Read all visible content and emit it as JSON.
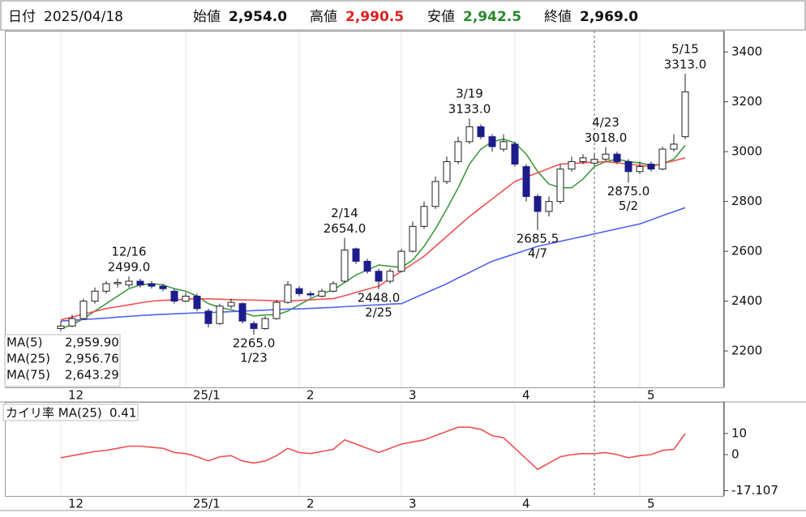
{
  "header": {
    "date_label": "日付",
    "date": "2025/04/18",
    "open_label": "始値",
    "open": "2,954.0",
    "high_label": "高値",
    "high": "2,990.5",
    "low_label": "安値",
    "low": "2,942.5",
    "close_label": "終値",
    "close": "2,969.0"
  },
  "chart_data": [
    {
      "type": "candlestick",
      "categories": [
        "12",
        null,
        null,
        null,
        null,
        null,
        null,
        null,
        null,
        null,
        null,
        "25/1",
        null,
        null,
        null,
        null,
        null,
        null,
        null,
        null,
        null,
        "2",
        null,
        null,
        null,
        null,
        null,
        null,
        null,
        null,
        "3",
        null,
        null,
        null,
        null,
        null,
        null,
        null,
        null,
        null,
        "4",
        null,
        null,
        null,
        null,
        null,
        null,
        null,
        null,
        null,
        null,
        "5",
        null,
        null,
        null,
        null
      ],
      "open": [
        2290,
        2300,
        2330,
        2400,
        2440,
        2470,
        2465,
        2480,
        2470,
        2460,
        2440,
        2400,
        2420,
        2360,
        2310,
        2380,
        2390,
        2310,
        2290,
        2330,
        2395,
        2450,
        2430,
        2420,
        2440,
        2480,
        2610,
        2560,
        2520,
        2480,
        2520,
        2600,
        2700,
        2780,
        2880,
        2960,
        3040,
        3100,
        3060,
        3010,
        3030,
        2940,
        2820,
        2760,
        2800,
        2930,
        2960,
        2954,
        2970,
        2990,
        2960,
        2920,
        2950,
        2930,
        3010,
        3060
      ],
      "high": [
        2320,
        2345,
        2410,
        2455,
        2480,
        2490,
        2499,
        2490,
        2480,
        2470,
        2450,
        2435,
        2430,
        2370,
        2390,
        2410,
        2395,
        2320,
        2340,
        2405,
        2480,
        2460,
        2440,
        2450,
        2480,
        2654,
        2615,
        2570,
        2530,
        2530,
        2610,
        2720,
        2800,
        2900,
        2980,
        3060,
        3133,
        3110,
        3070,
        3070,
        3040,
        2950,
        2830,
        2820,
        2950,
        2980,
        2990,
        2990.5,
        3018,
        3000,
        2970,
        2960,
        2960,
        3020,
        3070,
        3313
      ],
      "low": [
        2280,
        2295,
        2325,
        2390,
        2430,
        2455,
        2455,
        2455,
        2450,
        2440,
        2390,
        2395,
        2360,
        2295,
        2305,
        2370,
        2310,
        2265,
        2285,
        2325,
        2390,
        2420,
        2415,
        2415,
        2435,
        2475,
        2550,
        2510,
        2448,
        2470,
        2515,
        2595,
        2690,
        2770,
        2870,
        2950,
        3030,
        3050,
        3000,
        3000,
        2940,
        2800,
        2685.5,
        2740,
        2790,
        2920,
        2950,
        2942.5,
        2960,
        2950,
        2875,
        2910,
        2920,
        2925,
        3000,
        3050
      ],
      "close": [
        2300,
        2330,
        2400,
        2440,
        2470,
        2475,
        2480,
        2465,
        2460,
        2450,
        2400,
        2420,
        2370,
        2310,
        2380,
        2395,
        2320,
        2290,
        2330,
        2395,
        2465,
        2430,
        2425,
        2440,
        2470,
        2605,
        2560,
        2520,
        2480,
        2520,
        2600,
        2700,
        2780,
        2880,
        2960,
        3040,
        3100,
        3060,
        3020,
        3040,
        2950,
        2820,
        2760,
        2800,
        2930,
        2960,
        2975,
        2969,
        2990,
        2960,
        2920,
        2940,
        2930,
        3010,
        3030,
        3240
      ],
      "up_color": "#ffffff",
      "down_color": "#1c1c8c",
      "series": [
        {
          "name": "MA(5)",
          "legend_value": "2,959.90",
          "color": "#3f9a3f",
          "values": [
            2290,
            2305,
            2330,
            2360,
            2390,
            2420,
            2450,
            2465,
            2470,
            2465,
            2450,
            2440,
            2420,
            2390,
            2375,
            2365,
            2355,
            2340,
            2345,
            2345,
            2360,
            2385,
            2410,
            2430,
            2445,
            2475,
            2505,
            2525,
            2545,
            2540,
            2535,
            2565,
            2620,
            2690,
            2770,
            2855,
            2950,
            3010,
            3040,
            3050,
            3035,
            2990,
            2920,
            2870,
            2855,
            2855,
            2890,
            2940,
            2960,
            2970,
            2960,
            2955,
            2945,
            2950,
            2970,
            3025
          ]
        },
        {
          "name": "MA(25)",
          "legend_value": "2,956.76",
          "color": "#f05050",
          "values": [
            2325,
            2336,
            2348,
            2359,
            2370,
            2378,
            2385,
            2393,
            2400,
            2403,
            2405,
            2408,
            2410,
            2409,
            2408,
            2406,
            2405,
            2404,
            2403,
            2401,
            2400,
            2403,
            2405,
            2408,
            2410,
            2422,
            2435,
            2448,
            2460,
            2490,
            2520,
            2550,
            2580,
            2620,
            2660,
            2700,
            2740,
            2775,
            2810,
            2845,
            2880,
            2898,
            2915,
            2933,
            2950,
            2953,
            2955,
            2958,
            2960,
            2955,
            2950,
            2945,
            2940,
            2952,
            2963,
            2975
          ]
        },
        {
          "name": "MA(75)",
          "legend_value": "2,643.29",
          "color": "#5262f0",
          "values": [
            2320,
            2323,
            2326,
            2329,
            2332,
            2336,
            2339,
            2342,
            2345,
            2347,
            2349,
            2351,
            2353,
            2354,
            2356,
            2358,
            2360,
            2362,
            2364,
            2366,
            2368,
            2369,
            2371,
            2373,
            2375,
            2378,
            2380,
            2383,
            2385,
            2388,
            2390,
            2410,
            2430,
            2450,
            2470,
            2493,
            2515,
            2538,
            2560,
            2575,
            2590,
            2605,
            2620,
            2630,
            2640,
            2650,
            2660,
            2670,
            2680,
            2690,
            2700,
            2710,
            2726,
            2743,
            2759,
            2775
          ]
        }
      ],
      "annotations": [
        {
          "date": "12/16",
          "value": 2499,
          "label": "2499.0"
        },
        {
          "date": "1/23",
          "value": 2265,
          "label": "2265.0"
        },
        {
          "date": "2/14",
          "value": 2654,
          "label": "2654.0"
        },
        {
          "date": "2/25",
          "value": 2448,
          "label": "2448.0"
        },
        {
          "date": "3/19",
          "value": 3133,
          "label": "3133.0"
        },
        {
          "date": "4/7",
          "value": 2685.5,
          "label": "2685.5"
        },
        {
          "date": "4/23",
          "value": 3018,
          "label": "3018.0"
        },
        {
          "date": "5/2",
          "value": 2875,
          "label": "2875.0"
        },
        {
          "date": "5/15",
          "value": 3313,
          "label": "3313.0"
        }
      ],
      "ylim": [
        2054,
        3485
      ],
      "yticks": [
        2200,
        2400,
        2600,
        2800,
        3000,
        3200,
        3400
      ],
      "grid": true
    },
    {
      "type": "line",
      "name": "カイリ率 MA(25)",
      "current": "0.41",
      "color": "#f05050",
      "values": [
        -1.5,
        -0.5,
        0.5,
        1.5,
        2,
        3,
        4,
        4,
        3.5,
        3,
        1,
        0.5,
        -1,
        -3,
        -1,
        -0.5,
        -3,
        -4,
        -3,
        -0.5,
        3,
        1,
        0.5,
        1.5,
        2.5,
        7,
        5,
        3,
        1,
        3,
        5,
        6,
        7,
        9,
        11,
        13,
        13,
        12,
        9,
        8,
        3,
        -2,
        -7,
        -4,
        -1,
        0,
        0.5,
        0.4,
        1,
        0,
        -1.5,
        -0.5,
        0,
        2,
        2.5,
        10
      ],
      "ylim": [
        -19.6,
        25
      ],
      "yticks": [
        10,
        0,
        -17.107
      ],
      "tick_colors": [
        "#111111",
        "#111111",
        "#e0601a"
      ],
      "grid": true
    }
  ]
}
